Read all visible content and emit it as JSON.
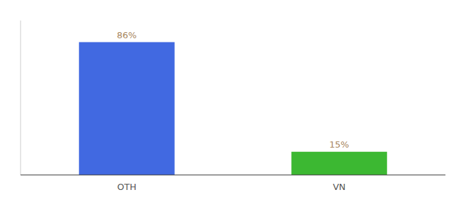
{
  "chart_data": {
    "type": "bar",
    "categories": [
      "OTH",
      "VN"
    ],
    "values": [
      86,
      15
    ],
    "value_labels": [
      "86%",
      "15%"
    ],
    "colors": [
      "#4169e1",
      "#3cb832"
    ],
    "ylim": [
      0,
      100
    ],
    "data_labels": true,
    "tick_labels": "x"
  }
}
